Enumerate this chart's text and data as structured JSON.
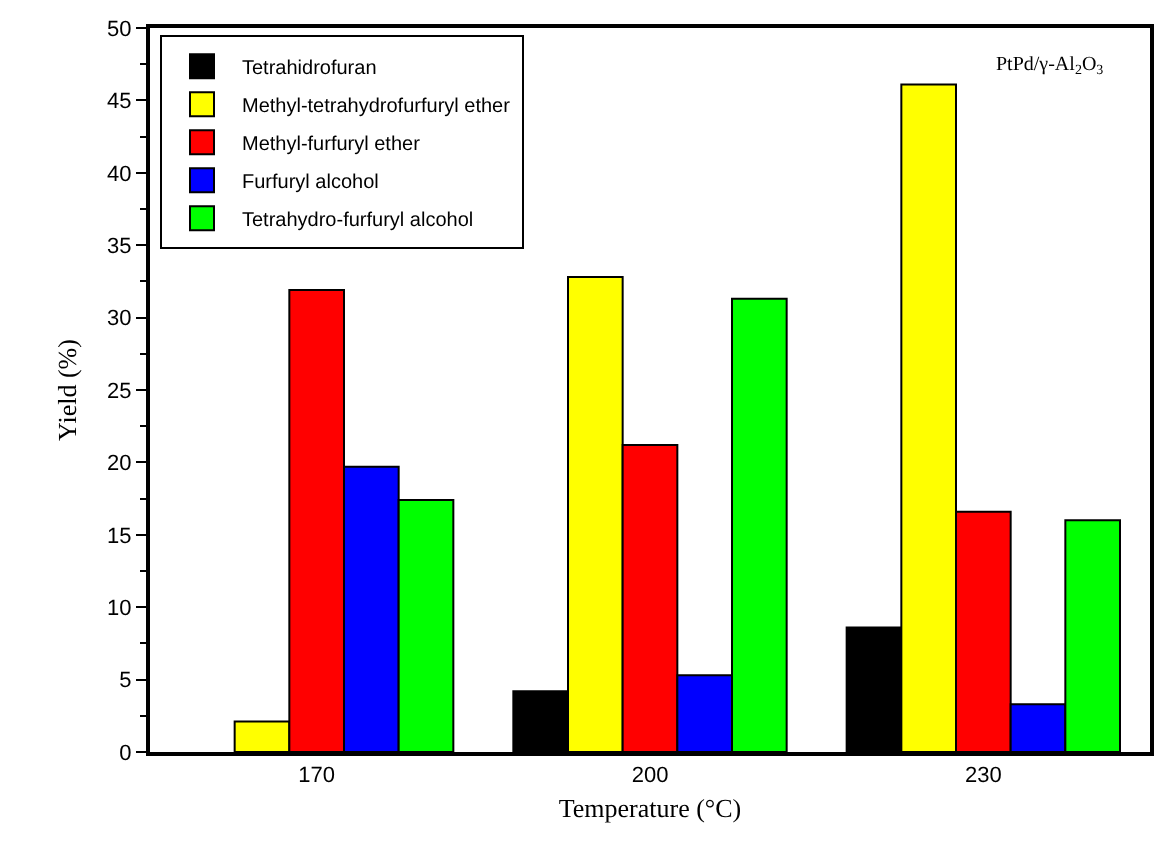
{
  "chart_data": {
    "type": "bar",
    "xlabel": "Temperature (°C)",
    "ylabel": "Yield (%)",
    "annotations": [
      "PtPd/γ-Al$_{2}$O$_{3}$"
    ],
    "categories": [
      "170",
      "200",
      "230"
    ],
    "series": [
      {
        "name": "Tetrahidrofuran",
        "color": "#000000",
        "values": [
          null,
          4.2,
          8.6
        ]
      },
      {
        "name": "Methyl-tetrahydrofurfuryl ether",
        "color": "#ffff00",
        "values": [
          2.1,
          32.8,
          46.1
        ]
      },
      {
        "name": "Methyl-furfuryl ether",
        "color": "#ff0000",
        "values": [
          31.9,
          21.2,
          16.6
        ]
      },
      {
        "name": "Furfuryl alcohol",
        "color": "#0000ff",
        "values": [
          19.7,
          5.3,
          3.3
        ]
      },
      {
        "name": "Tetrahydro-furfuryl alcohol",
        "color": "#00ff00",
        "values": [
          17.4,
          31.3,
          16.0
        ]
      }
    ],
    "ylim": [
      0,
      50
    ],
    "yticks": [
      0,
      5,
      10,
      15,
      20,
      25,
      30,
      35,
      40,
      45,
      50
    ],
    "grid": false,
    "legend": "top left"
  }
}
